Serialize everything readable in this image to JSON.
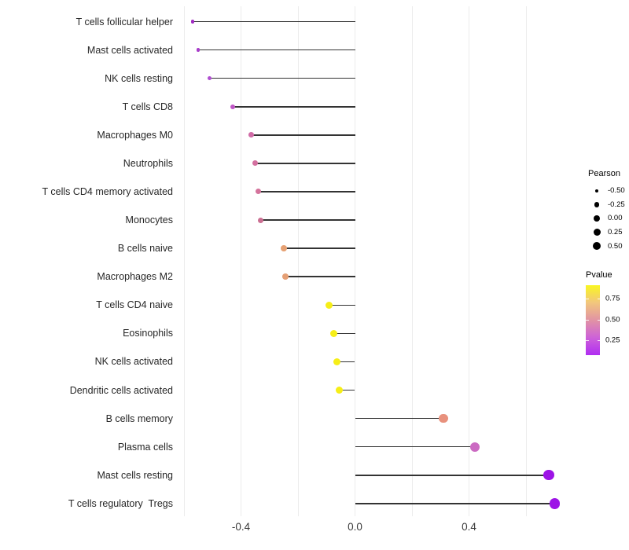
{
  "figure": {
    "background": "#ffffff",
    "grid_color": "#ececec",
    "stem_color": "#333333",
    "axis_text_color": "#3a3a3a",
    "category_text_color": "#262626"
  },
  "chart_data": {
    "type": "lollipop",
    "orientation": "horizontal",
    "title": "",
    "xlabel": "",
    "ylabel": "",
    "x_axis": {
      "tick_labels": [
        "-0.4",
        "0.0",
        "0.4"
      ],
      "tick_values": [
        -0.4,
        0.0,
        0.4
      ],
      "gridline_values": [
        -0.6,
        -0.4,
        -0.2,
        0.0,
        0.2,
        0.4,
        0.6
      ],
      "range": [
        -0.62,
        0.74
      ]
    },
    "grid": "vertical-only",
    "points": [
      {
        "label": "T cells follicular helper",
        "pearson": -0.57,
        "color": "#a02bc2"
      },
      {
        "label": "Mast cells activated",
        "pearson": -0.55,
        "color": "#a83cca"
      },
      {
        "label": "NK cells resting",
        "pearson": -0.51,
        "color": "#b04ed1"
      },
      {
        "label": "T cells CD8",
        "pearson": -0.43,
        "color": "#c057c6"
      },
      {
        "label": "Macrophages M0",
        "pearson": -0.365,
        "color": "#d06ba6"
      },
      {
        "label": "Neutrophils",
        "pearson": -0.35,
        "color": "#d3709f"
      },
      {
        "label": "T cells CD4 memory activated",
        "pearson": -0.34,
        "color": "#d4739c"
      },
      {
        "label": "Monocytes",
        "pearson": -0.33,
        "color": "#cb6f92"
      },
      {
        "label": "B cells naive",
        "pearson": -0.25,
        "color": "#e6a173"
      },
      {
        "label": "Macrophages M2",
        "pearson": -0.245,
        "color": "#e59f75"
      },
      {
        "label": "T cells CD4 naive",
        "pearson": -0.09,
        "color": "#f6ee17"
      },
      {
        "label": "Eosinophils",
        "pearson": -0.075,
        "color": "#f6ee17"
      },
      {
        "label": "NK cells activated",
        "pearson": -0.063,
        "color": "#f6ee17"
      },
      {
        "label": "Dendritic cells activated",
        "pearson": -0.056,
        "color": "#f6ee17"
      },
      {
        "label": "B cells memory",
        "pearson": 0.31,
        "color": "#e8917d"
      },
      {
        "label": "Plasma cells",
        "pearson": 0.42,
        "color": "#cb6ac2"
      },
      {
        "label": "Mast cells resting",
        "pearson": 0.68,
        "color": "#9d13e6"
      },
      {
        "label": "T cells regulatory  Tregs",
        "pearson": 0.7,
        "color": "#9d13e6"
      }
    ],
    "legends": {
      "size": {
        "title": "Pearson",
        "entries": [
          "-0.50",
          "-0.25",
          "0.00",
          "0.25",
          "0.50"
        ],
        "dot_color": "#000000",
        "position": "right"
      },
      "color": {
        "title": "Pvalue",
        "entries": [
          "0.75",
          "0.50",
          "0.25"
        ],
        "gradient_top_to_bottom": [
          "#f9f621",
          "#f2c67d",
          "#e193a4",
          "#cd62d8",
          "#b02df2"
        ],
        "position": "right"
      }
    }
  }
}
